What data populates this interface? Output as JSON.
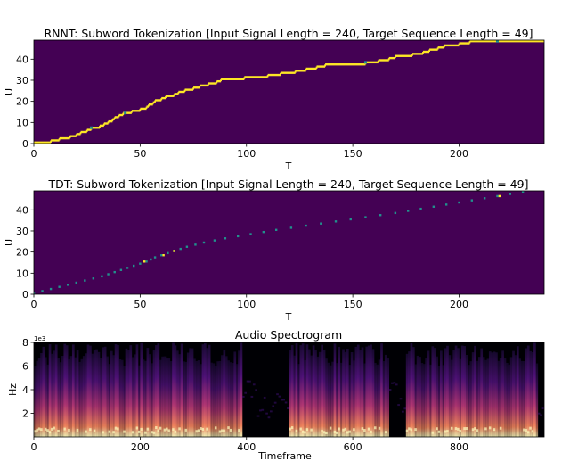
{
  "chart_data": [
    {
      "type": "heatmap",
      "title": "RNNT: Subword Tokenization [Input Signal Length = 240, Target Sequence Length = 49]",
      "xlabel": "T",
      "ylabel": "U",
      "xlim": [
        0,
        240
      ],
      "ylim": [
        0,
        49
      ],
      "xticks": [
        0,
        50,
        100,
        150,
        200
      ],
      "yticks": [
        0,
        10,
        20,
        30,
        40
      ],
      "background_color": "#440154",
      "path_color": "#fde725",
      "path_mid_color": "#21918c",
      "alignment_path": [
        [
          0,
          0
        ],
        [
          8,
          1
        ],
        [
          12,
          2
        ],
        [
          17,
          3
        ],
        [
          20,
          4
        ],
        [
          22,
          5
        ],
        [
          25,
          6
        ],
        [
          27,
          7
        ],
        [
          31,
          8
        ],
        [
          33,
          9
        ],
        [
          35,
          10
        ],
        [
          37,
          11
        ],
        [
          38,
          12
        ],
        [
          40,
          13
        ],
        [
          42,
          14
        ],
        [
          46,
          15
        ],
        [
          50,
          16
        ],
        [
          53,
          17
        ],
        [
          54,
          18
        ],
        [
          56,
          19
        ],
        [
          57,
          20
        ],
        [
          60,
          21
        ],
        [
          62,
          22
        ],
        [
          66,
          23
        ],
        [
          68,
          24
        ],
        [
          71,
          25
        ],
        [
          75,
          26
        ],
        [
          78,
          27
        ],
        [
          82,
          28
        ],
        [
          86,
          29
        ],
        [
          88,
          30
        ],
        [
          99,
          31
        ],
        [
          110,
          32
        ],
        [
          116,
          33
        ],
        [
          123,
          34
        ],
        [
          128,
          35
        ],
        [
          133,
          36
        ],
        [
          137,
          37
        ],
        [
          156,
          38
        ],
        [
          162,
          39
        ],
        [
          167,
          40
        ],
        [
          170,
          41
        ],
        [
          178,
          42
        ],
        [
          183,
          43
        ],
        [
          186,
          44
        ],
        [
          190,
          45
        ],
        [
          193,
          46
        ],
        [
          200,
          47
        ],
        [
          205,
          48
        ],
        [
          240,
          49
        ]
      ],
      "uncertain_points": [
        [
          27,
          7
        ],
        [
          43,
          14
        ],
        [
          156,
          38
        ],
        [
          218,
          48
        ]
      ]
    },
    {
      "type": "heatmap",
      "title": "TDT: Subword Tokenization [Input Signal Length = 240, Target Sequence Length = 49]",
      "xlabel": "T",
      "ylabel": "U",
      "xlim": [
        0,
        240
      ],
      "ylim": [
        0,
        49
      ],
      "xticks": [
        0,
        50,
        100,
        150,
        200
      ],
      "yticks": [
        0,
        10,
        20,
        30,
        40
      ],
      "background_color": "#440154",
      "alignment_points": [
        [
          0,
          0
        ],
        [
          4,
          1
        ],
        [
          8,
          2
        ],
        [
          12,
          3
        ],
        [
          16,
          4
        ],
        [
          20,
          5
        ],
        [
          24,
          6
        ],
        [
          28,
          7
        ],
        [
          32,
          8
        ],
        [
          35,
          9
        ],
        [
          38,
          10
        ],
        [
          41,
          11
        ],
        [
          44,
          12
        ],
        [
          47,
          13
        ],
        [
          50,
          14
        ],
        [
          53,
          15
        ],
        [
          55,
          16
        ],
        [
          57,
          17
        ],
        [
          60,
          18
        ],
        [
          63,
          19
        ],
        [
          66,
          20
        ],
        [
          69,
          21
        ],
        [
          72,
          22
        ],
        [
          76,
          23
        ],
        [
          80,
          24
        ],
        [
          85,
          25
        ],
        [
          90,
          26
        ],
        [
          96,
          27
        ],
        [
          102,
          28
        ],
        [
          108,
          29
        ],
        [
          114,
          30
        ],
        [
          121,
          31
        ],
        [
          128,
          32
        ],
        [
          135,
          33
        ],
        [
          142,
          34
        ],
        [
          149,
          35
        ],
        [
          156,
          36
        ],
        [
          163,
          37
        ],
        [
          170,
          38
        ],
        [
          176,
          39
        ],
        [
          182,
          40
        ],
        [
          188,
          41
        ],
        [
          194,
          42
        ],
        [
          200,
          43
        ],
        [
          206,
          44
        ],
        [
          212,
          45
        ],
        [
          218,
          46
        ],
        [
          224,
          47
        ],
        [
          230,
          48
        ],
        [
          236,
          49
        ]
      ],
      "highlight_points": [
        [
          52,
          15
        ],
        [
          61,
          18
        ],
        [
          66,
          20
        ],
        [
          219,
          46
        ]
      ],
      "point_color": "#21918c",
      "highlight_color": "#fde725"
    },
    {
      "type": "heatmap",
      "title": "Audio Spectrogram",
      "xlabel": "Timeframe",
      "ylabel": "Hz",
      "xlim": [
        0,
        960
      ],
      "ylim": [
        0,
        8
      ],
      "xticks": [
        0,
        200,
        400,
        600,
        800
      ],
      "yticks": [
        2,
        4,
        6,
        8
      ],
      "y_offset_label": "1e3",
      "colormap": "magma",
      "speech_segments": [
        [
          0,
          390
        ],
        [
          480,
          665
        ],
        [
          700,
          945
        ]
      ],
      "background_color": "#000004"
    }
  ]
}
